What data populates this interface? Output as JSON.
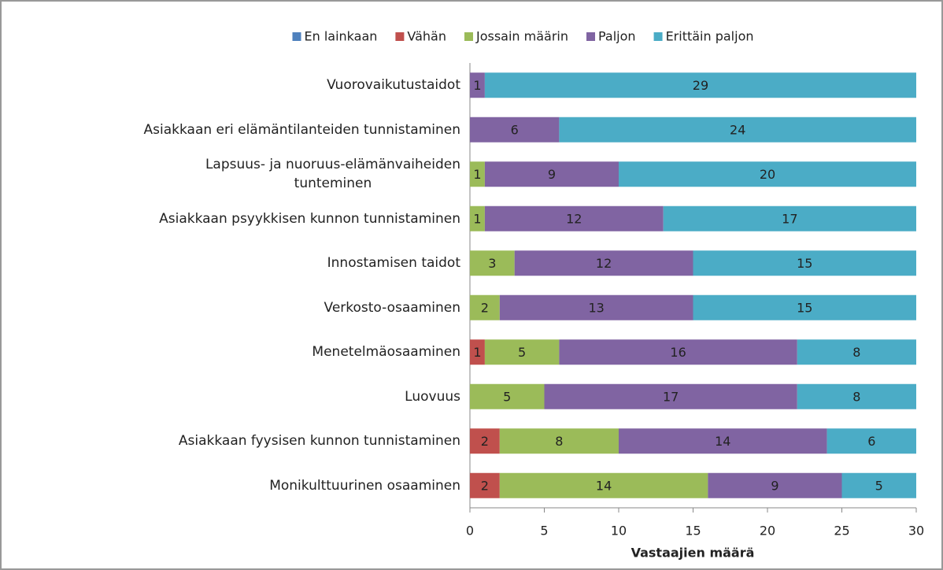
{
  "chart_data": {
    "type": "stacked-bar-horizontal",
    "x_label": "Vastaajien määrä",
    "categories": [
      "Vuorovaikutustaidot",
      "Asiakkaan eri elämäntilanteiden tunnistaminen",
      "Lapsuus- ja nuoruus-elämänvaiheiden\ntunteminen",
      "Asiakkaan psyykkisen kunnon tunnistaminen",
      "Innostamisen taidot",
      "Verkosto-osaaminen",
      "Menetelmäosaaminen",
      "Luovuus",
      "Asiakkaan fyysisen kunnon tunnistaminen",
      "Monikulttuurinen osaaminen"
    ],
    "series": [
      {
        "name": "En lainkaan",
        "color": "#4f81bd",
        "values": [
          null,
          null,
          null,
          null,
          null,
          null,
          null,
          null,
          null,
          null
        ]
      },
      {
        "name": "Vähän",
        "color": "#c0504d",
        "values": [
          null,
          null,
          null,
          null,
          null,
          null,
          1,
          null,
          2,
          2
        ]
      },
      {
        "name": "Jossain määrin",
        "color": "#9bbb59",
        "values": [
          null,
          null,
          1,
          1,
          3,
          2,
          5,
          5,
          8,
          14
        ]
      },
      {
        "name": "Paljon",
        "color": "#8064a2",
        "values": [
          1,
          6,
          9,
          12,
          12,
          13,
          16,
          17,
          14,
          9
        ]
      },
      {
        "name": "Erittäin paljon",
        "color": "#4bacc6",
        "values": [
          29,
          24,
          20,
          17,
          15,
          15,
          8,
          8,
          6,
          5
        ]
      }
    ],
    "xlim": [
      0,
      30
    ],
    "xticks": [
      0,
      5,
      10,
      15,
      20,
      25,
      30
    ],
    "legend": "top"
  }
}
